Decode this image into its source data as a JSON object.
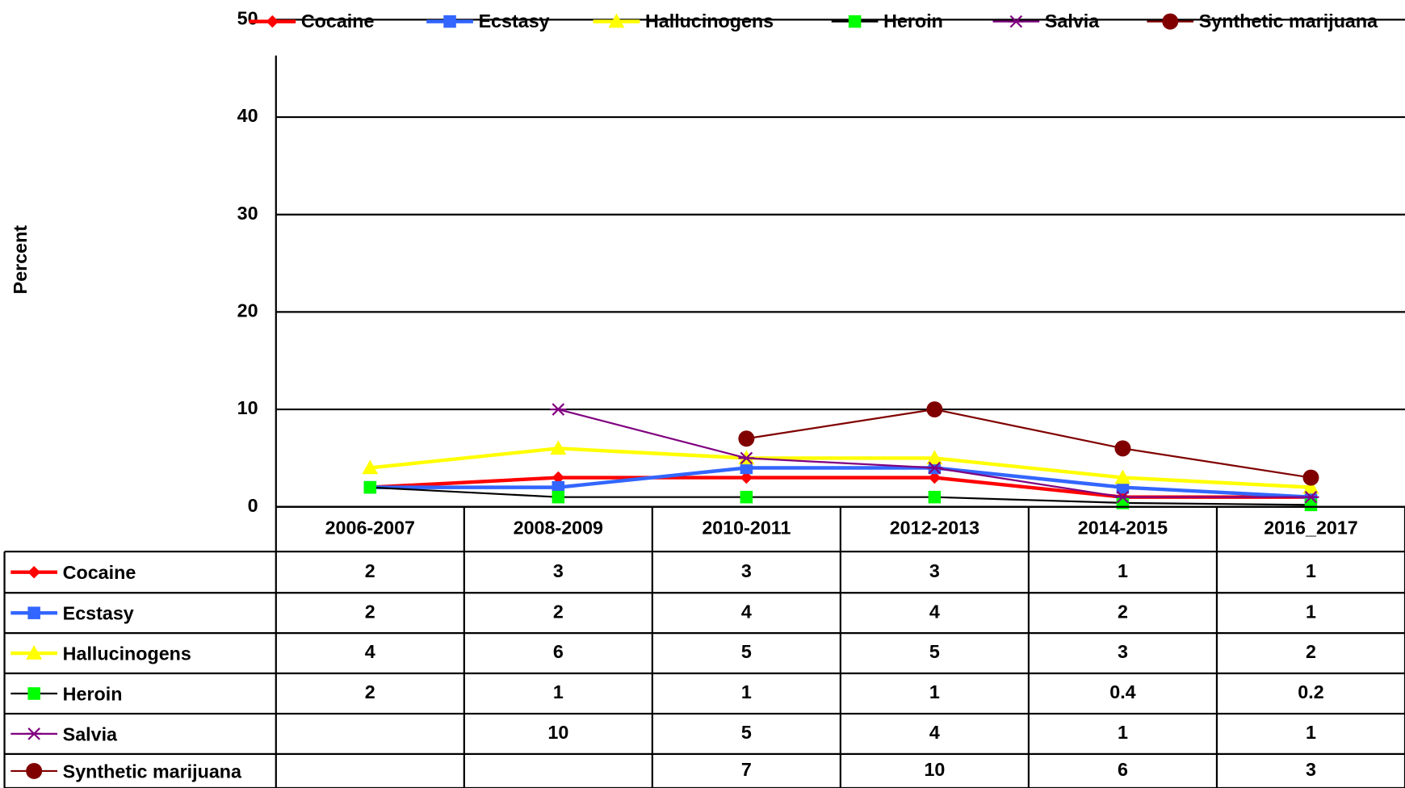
{
  "chart_data": {
    "type": "line",
    "y_label": "Percent",
    "categories": [
      "2006-2007",
      "2008-2009",
      "2010-2011",
      "2012-2013",
      "2014-2015",
      "2016_2017"
    ],
    "series": [
      {
        "name": "Cocaine",
        "color": "#ff0000",
        "marker": "diamond",
        "values": [
          2,
          3,
          3,
          3,
          1,
          1
        ]
      },
      {
        "name": "Ecstasy",
        "color": "#3366ff",
        "marker": "square",
        "values": [
          2,
          2,
          4,
          4,
          2,
          1
        ]
      },
      {
        "name": "Hallucinogens",
        "color": "#ffff00",
        "marker": "triangle",
        "values": [
          4,
          6,
          5,
          5,
          3,
          2
        ]
      },
      {
        "name": "Heroin",
        "color": "#000000",
        "marker_color": "#00ff00",
        "marker": "square",
        "values": [
          2,
          1,
          1,
          1,
          0.4,
          0.2
        ]
      },
      {
        "name": "Salvia",
        "color": "#800080",
        "marker": "star",
        "values": [
          null,
          10,
          5,
          4,
          1,
          1
        ]
      },
      {
        "name": "Synthetic marijuana",
        "color": "#800000",
        "marker": "circle",
        "values": [
          null,
          null,
          7,
          10,
          6,
          3
        ]
      }
    ],
    "ylim": [
      0,
      50
    ],
    "yticks": [
      0,
      10,
      20,
      30,
      40,
      50
    ],
    "grid": true,
    "legend": "top",
    "data_table": true
  }
}
